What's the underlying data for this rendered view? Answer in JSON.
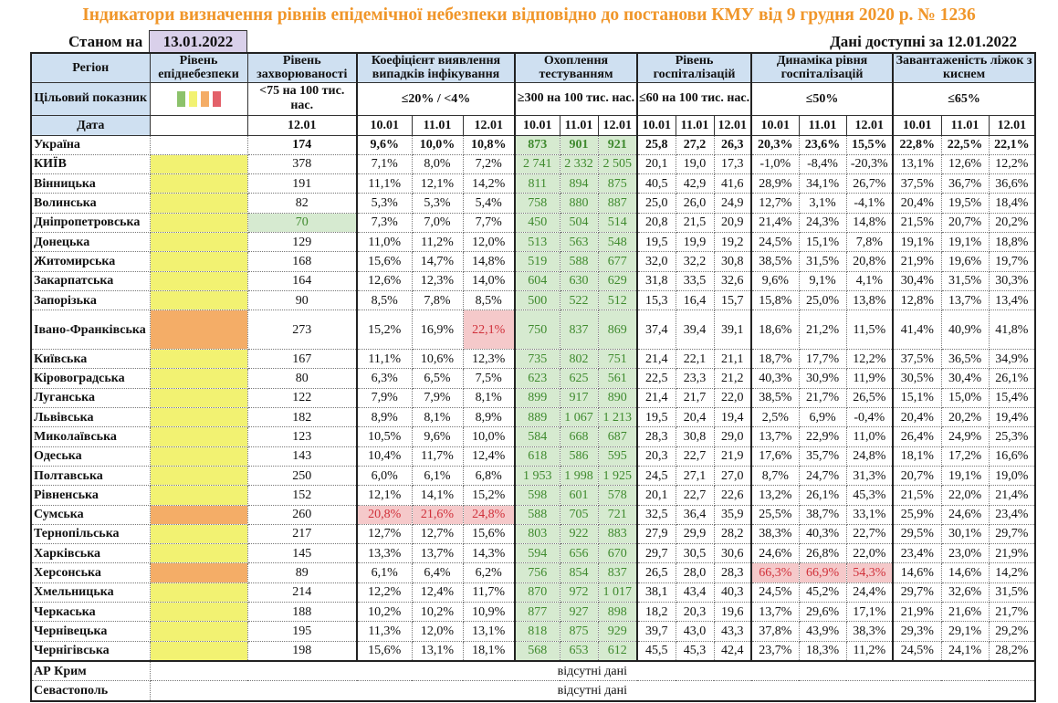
{
  "title": "Індикатори визначення рівнів епідемічної небезпеки відповідно до постанови КМУ від 9 грудня 2020 р. № 1236",
  "as_of_label": "Станом на",
  "as_of_date": "13.01.2022",
  "available_label": "Дані доступні за  12.01.2022",
  "headers": {
    "region": "Регіон",
    "level": "Рівень епіднебезпеки",
    "incidence": "Рівень захворюваності",
    "coef": "Коефіцієнт виявлення випадків інфікування",
    "testing": "Охоплення тестуванням",
    "hosp": "Рівень госпіталізацій",
    "dyn": "Динаміка рівня госпіталізацій",
    "beds": "Завантаженість ліжок з киснем"
  },
  "targets": {
    "label": "Цільовий показник",
    "level_swatches": [
      "#8cc26b",
      "#f2f272",
      "#f4ad67",
      "#e3616a"
    ],
    "incidence": "<75 на 100 тис. нас.",
    "coef": "≤20% / <4%",
    "testing": "≥300 на 100 тис. нас.",
    "hosp": "≤60 на 100 тис. нас.",
    "dyn": "≤50%",
    "beds": "≤65%"
  },
  "dates": {
    "label": "Дата",
    "incidence": "12.01",
    "triple": [
      "10.01",
      "11.01",
      "12.01"
    ]
  },
  "colors": {
    "yellow": "#f2f272",
    "orange": "#f4ad67",
    "green_fill": "#d6ead0",
    "red_fill": "#f5c9ca",
    "title": "#f0962a"
  },
  "ukraine": {
    "name": "Україна",
    "inc": "174",
    "coef": [
      "9,6%",
      "10,0%",
      "10,8%"
    ],
    "test": [
      "873",
      "901",
      "921"
    ],
    "hosp": [
      "25,8",
      "27,2",
      "26,3"
    ],
    "dyn": [
      "20,3%",
      "23,6%",
      "15,5%"
    ],
    "beds": [
      "22,8%",
      "22,5%",
      "22,1%"
    ]
  },
  "rows": [
    {
      "name": "КИЇВ",
      "level": "yellow",
      "inc": "378",
      "coef": [
        "7,1%",
        "8,0%",
        "7,2%"
      ],
      "test": [
        "2 741",
        "2 332",
        "2 505"
      ],
      "hosp": [
        "20,1",
        "19,0",
        "17,3"
      ],
      "dyn": [
        "-1,0%",
        "-8,4%",
        "-20,3%"
      ],
      "beds": [
        "13,1%",
        "12,6%",
        "12,2%"
      ]
    },
    {
      "name": "Вінницька",
      "level": "yellow",
      "inc": "191",
      "coef": [
        "11,1%",
        "12,1%",
        "14,2%"
      ],
      "test": [
        "811",
        "894",
        "875"
      ],
      "hosp": [
        "40,5",
        "42,9",
        "41,6"
      ],
      "dyn": [
        "28,9%",
        "34,1%",
        "26,7%"
      ],
      "beds": [
        "37,5%",
        "36,7%",
        "36,6%"
      ]
    },
    {
      "name": "Волинська",
      "level": "yellow",
      "inc": "82",
      "coef": [
        "5,3%",
        "5,3%",
        "5,4%"
      ],
      "test": [
        "758",
        "880",
        "887"
      ],
      "hosp": [
        "25,0",
        "26,0",
        "24,9"
      ],
      "dyn": [
        "12,7%",
        "3,1%",
        "-4,1%"
      ],
      "beds": [
        "20,4%",
        "19,5%",
        "18,4%"
      ]
    },
    {
      "name": "Дніпропетровська",
      "level": "yellow",
      "inc": "70",
      "inc_hl": "green",
      "coef": [
        "7,3%",
        "7,0%",
        "7,7%"
      ],
      "test": [
        "450",
        "504",
        "514"
      ],
      "hosp": [
        "20,8",
        "21,5",
        "20,9"
      ],
      "dyn": [
        "21,4%",
        "24,3%",
        "14,8%"
      ],
      "beds": [
        "21,5%",
        "20,7%",
        "20,2%"
      ]
    },
    {
      "name": "Донецька",
      "level": "yellow",
      "inc": "129",
      "coef": [
        "11,0%",
        "11,2%",
        "12,0%"
      ],
      "test": [
        "513",
        "563",
        "548"
      ],
      "hosp": [
        "19,5",
        "19,9",
        "19,2"
      ],
      "dyn": [
        "24,5%",
        "15,1%",
        "7,8%"
      ],
      "beds": [
        "19,1%",
        "19,1%",
        "18,8%"
      ]
    },
    {
      "name": "Житомирська",
      "level": "yellow",
      "inc": "168",
      "coef": [
        "15,6%",
        "14,7%",
        "14,8%"
      ],
      "test": [
        "519",
        "588",
        "677"
      ],
      "hosp": [
        "32,0",
        "32,2",
        "30,8"
      ],
      "dyn": [
        "38,5%",
        "31,5%",
        "20,8%"
      ],
      "beds": [
        "21,9%",
        "19,6%",
        "19,7%"
      ]
    },
    {
      "name": "Закарпатська",
      "level": "yellow",
      "inc": "164",
      "coef": [
        "12,6%",
        "12,3%",
        "14,0%"
      ],
      "test": [
        "604",
        "630",
        "629"
      ],
      "hosp": [
        "31,8",
        "33,5",
        "32,6"
      ],
      "dyn": [
        "9,6%",
        "9,1%",
        "4,1%"
      ],
      "beds": [
        "30,4%",
        "31,5%",
        "30,3%"
      ]
    },
    {
      "name": "Запорізька",
      "level": "yellow",
      "inc": "90",
      "coef": [
        "8,5%",
        "7,8%",
        "8,5%"
      ],
      "test": [
        "500",
        "522",
        "512"
      ],
      "hosp": [
        "15,3",
        "16,4",
        "15,7"
      ],
      "dyn": [
        "15,8%",
        "25,0%",
        "13,8%"
      ],
      "beds": [
        "12,8%",
        "13,7%",
        "13,4%"
      ]
    },
    {
      "name": "Івано-Франківська",
      "level": "orange",
      "inc": "273",
      "coef": [
        "15,2%",
        "16,9%",
        "22,1%"
      ],
      "coef_red": [
        2
      ],
      "test": [
        "750",
        "837",
        "869"
      ],
      "hosp": [
        "37,4",
        "39,4",
        "39,1"
      ],
      "dyn": [
        "18,6%",
        "21,2%",
        "11,5%"
      ],
      "beds": [
        "41,4%",
        "40,9%",
        "41,8%"
      ]
    },
    {
      "name": "Київська",
      "level": "yellow",
      "inc": "167",
      "coef": [
        "11,1%",
        "10,6%",
        "12,3%"
      ],
      "test": [
        "735",
        "802",
        "751"
      ],
      "hosp": [
        "21,4",
        "22,1",
        "21,1"
      ],
      "dyn": [
        "18,7%",
        "17,7%",
        "12,2%"
      ],
      "beds": [
        "37,5%",
        "36,5%",
        "34,9%"
      ]
    },
    {
      "name": "Кіровоградська",
      "level": "yellow",
      "inc": "80",
      "coef": [
        "6,3%",
        "6,5%",
        "7,5%"
      ],
      "test": [
        "623",
        "625",
        "561"
      ],
      "hosp": [
        "22,5",
        "23,3",
        "21,2"
      ],
      "dyn": [
        "40,3%",
        "30,9%",
        "11,9%"
      ],
      "beds": [
        "30,5%",
        "30,4%",
        "26,1%"
      ]
    },
    {
      "name": "Луганська",
      "level": "yellow",
      "inc": "122",
      "coef": [
        "7,9%",
        "7,9%",
        "8,1%"
      ],
      "test": [
        "899",
        "917",
        "890"
      ],
      "hosp": [
        "21,4",
        "21,7",
        "22,0"
      ],
      "dyn": [
        "38,5%",
        "21,7%",
        "26,5%"
      ],
      "beds": [
        "15,1%",
        "15,0%",
        "15,4%"
      ]
    },
    {
      "name": "Львівська",
      "level": "yellow",
      "inc": "182",
      "coef": [
        "8,9%",
        "8,1%",
        "8,9%"
      ],
      "test": [
        "889",
        "1 067",
        "1 213"
      ],
      "hosp": [
        "19,5",
        "20,4",
        "19,4"
      ],
      "dyn": [
        "2,5%",
        "6,9%",
        "-0,4%"
      ],
      "beds": [
        "20,4%",
        "20,2%",
        "19,4%"
      ]
    },
    {
      "name": "Миколаївська",
      "level": "yellow",
      "inc": "123",
      "coef": [
        "10,5%",
        "9,6%",
        "10,0%"
      ],
      "test": [
        "584",
        "668",
        "687"
      ],
      "hosp": [
        "28,3",
        "30,8",
        "29,0"
      ],
      "dyn": [
        "13,7%",
        "22,9%",
        "11,0%"
      ],
      "beds": [
        "26,4%",
        "24,9%",
        "25,3%"
      ]
    },
    {
      "name": "Одеська",
      "level": "yellow",
      "inc": "143",
      "coef": [
        "10,4%",
        "11,7%",
        "12,4%"
      ],
      "test": [
        "618",
        "586",
        "595"
      ],
      "hosp": [
        "20,3",
        "22,7",
        "21,9"
      ],
      "dyn": [
        "17,6%",
        "35,7%",
        "24,8%"
      ],
      "beds": [
        "18,1%",
        "17,2%",
        "16,6%"
      ]
    },
    {
      "name": "Полтавська",
      "level": "yellow",
      "inc": "250",
      "coef": [
        "6,0%",
        "6,1%",
        "6,8%"
      ],
      "test": [
        "1 953",
        "1 998",
        "1 925"
      ],
      "hosp": [
        "24,5",
        "27,1",
        "27,0"
      ],
      "dyn": [
        "8,7%",
        "24,7%",
        "31,3%"
      ],
      "beds": [
        "20,7%",
        "19,1%",
        "19,0%"
      ]
    },
    {
      "name": "Рівненська",
      "level": "yellow",
      "inc": "152",
      "coef": [
        "12,1%",
        "14,1%",
        "15,2%"
      ],
      "test": [
        "598",
        "601",
        "578"
      ],
      "hosp": [
        "20,1",
        "22,7",
        "22,6"
      ],
      "dyn": [
        "13,2%",
        "26,1%",
        "45,3%"
      ],
      "beds": [
        "21,5%",
        "22,0%",
        "21,4%"
      ]
    },
    {
      "name": "Сумська",
      "level": "orange",
      "inc": "260",
      "coef": [
        "20,8%",
        "21,6%",
        "24,8%"
      ],
      "coef_red": [
        0,
        1,
        2
      ],
      "test": [
        "588",
        "705",
        "721"
      ],
      "hosp": [
        "32,5",
        "36,4",
        "35,9"
      ],
      "dyn": [
        "25,5%",
        "38,7%",
        "33,1%"
      ],
      "beds": [
        "25,9%",
        "24,6%",
        "23,4%"
      ]
    },
    {
      "name": "Тернопільська",
      "level": "yellow",
      "inc": "217",
      "coef": [
        "12,7%",
        "12,7%",
        "15,6%"
      ],
      "test": [
        "803",
        "922",
        "883"
      ],
      "hosp": [
        "27,9",
        "29,9",
        "28,2"
      ],
      "dyn": [
        "38,3%",
        "40,3%",
        "22,7%"
      ],
      "beds": [
        "29,5%",
        "30,1%",
        "29,7%"
      ]
    },
    {
      "name": "Харківська",
      "level": "yellow",
      "inc": "145",
      "coef": [
        "13,3%",
        "13,7%",
        "14,3%"
      ],
      "test": [
        "594",
        "656",
        "670"
      ],
      "hosp": [
        "29,7",
        "30,5",
        "30,6"
      ],
      "dyn": [
        "24,6%",
        "26,8%",
        "22,0%"
      ],
      "beds": [
        "23,4%",
        "23,0%",
        "21,9%"
      ]
    },
    {
      "name": "Херсонська",
      "level": "orange",
      "inc": "89",
      "coef": [
        "6,1%",
        "6,4%",
        "6,2%"
      ],
      "test": [
        "756",
        "854",
        "837"
      ],
      "hosp": [
        "26,5",
        "28,0",
        "28,3"
      ],
      "dyn": [
        "66,3%",
        "66,9%",
        "54,3%"
      ],
      "dyn_red": [
        0,
        1,
        2
      ],
      "beds": [
        "14,6%",
        "14,6%",
        "14,2%"
      ]
    },
    {
      "name": "Хмельницька",
      "level": "yellow",
      "inc": "214",
      "coef": [
        "12,2%",
        "12,4%",
        "11,7%"
      ],
      "test": [
        "870",
        "972",
        "1 017"
      ],
      "hosp": [
        "38,1",
        "43,4",
        "40,3"
      ],
      "dyn": [
        "24,5%",
        "45,2%",
        "24,4%"
      ],
      "beds": [
        "29,7%",
        "32,6%",
        "31,5%"
      ]
    },
    {
      "name": "Черкаська",
      "level": "yellow",
      "inc": "188",
      "coef": [
        "10,2%",
        "10,2%",
        "10,9%"
      ],
      "test": [
        "877",
        "927",
        "898"
      ],
      "hosp": [
        "18,2",
        "20,3",
        "19,6"
      ],
      "dyn": [
        "13,7%",
        "29,6%",
        "17,1%"
      ],
      "beds": [
        "21,9%",
        "21,6%",
        "21,7%"
      ]
    },
    {
      "name": "Чернівецька",
      "level": "yellow",
      "inc": "195",
      "coef": [
        "11,3%",
        "12,0%",
        "13,1%"
      ],
      "test": [
        "818",
        "875",
        "929"
      ],
      "hosp": [
        "39,7",
        "43,0",
        "43,3"
      ],
      "dyn": [
        "37,8%",
        "43,9%",
        "38,3%"
      ],
      "beds": [
        "29,3%",
        "29,1%",
        "29,2%"
      ]
    },
    {
      "name": "Чернігівська",
      "level": "yellow",
      "inc": "198",
      "coef": [
        "15,6%",
        "13,1%",
        "18,1%"
      ],
      "test": [
        "568",
        "653",
        "612"
      ],
      "hosp": [
        "45,5",
        "45,3",
        "42,4"
      ],
      "dyn": [
        "23,7%",
        "18,3%",
        "11,2%"
      ],
      "beds": [
        "24,5%",
        "24,1%",
        "28,2%"
      ]
    }
  ],
  "missing": [
    {
      "name": "АР Крим",
      "text": "відсутні дані"
    },
    {
      "name": "Севастополь",
      "text": "відсутні дані"
    }
  ]
}
